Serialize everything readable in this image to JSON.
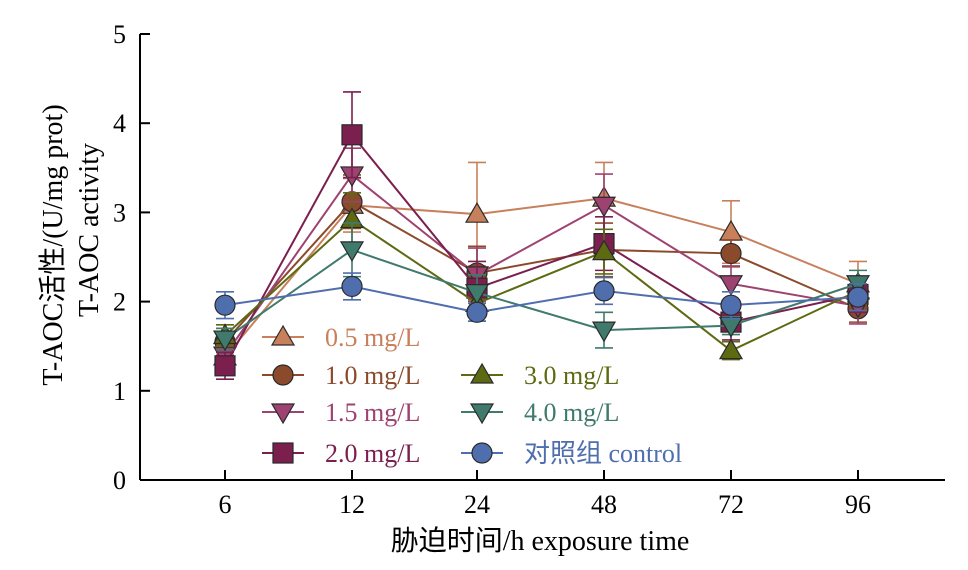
{
  "chart_data": {
    "type": "line",
    "title": "",
    "xlabel": "胁迫时间/h exposure time",
    "ylabel": "T-AOC活性/(U/mg prot)",
    "ylabel2": "T-AOC activity",
    "categories": [
      "6",
      "12",
      "24",
      "48",
      "72",
      "96"
    ],
    "yticks": [
      "0",
      "1",
      "2",
      "3",
      "4",
      "5"
    ],
    "ylim": [
      0,
      5
    ],
    "grid": false,
    "legend_position": "bottom-left",
    "series": [
      {
        "name": "0.5 mg/L",
        "color": "#C8805C",
        "marker": "triangle-up",
        "values": [
          1.38,
          3.08,
          2.98,
          3.16,
          2.78,
          2.2
        ],
        "errors": [
          0.18,
          0.3,
          0.58,
          0.4,
          0.35,
          0.25
        ]
      },
      {
        "name": "1.0 mg/L",
        "color": "#8B4A2B",
        "marker": "circle",
        "values": [
          1.55,
          3.12,
          2.32,
          2.58,
          2.54,
          1.92
        ],
        "errors": [
          0.15,
          0.3,
          0.3,
          0.3,
          0.15,
          0.15
        ]
      },
      {
        "name": "1.5 mg/L",
        "color": "#9E4272",
        "marker": "triangle-down",
        "values": [
          1.4,
          3.42,
          2.3,
          3.08,
          2.2,
          1.95
        ],
        "errors": [
          0.15,
          0.3,
          0.3,
          0.35,
          0.2,
          0.2
        ]
      },
      {
        "name": "2.0 mg/L",
        "color": "#7A1F4E",
        "marker": "square",
        "values": [
          1.28,
          3.87,
          2.15,
          2.65,
          1.77,
          2.08
        ],
        "errors": [
          0.15,
          0.48,
          0.3,
          0.3,
          0.2,
          0.2
        ]
      },
      {
        "name": "3.0 mg/L",
        "color": "#5E6A12",
        "marker": "triangle-up",
        "values": [
          1.62,
          2.92,
          1.98,
          2.56,
          1.45,
          2.12
        ],
        "errors": [
          0.12,
          0.3,
          0.2,
          0.25,
          0.1,
          0.15
        ]
      },
      {
        "name": "4.0 mg/L",
        "color": "#3F7A6C",
        "marker": "triangle-down",
        "values": [
          1.58,
          2.58,
          2.1,
          1.68,
          1.73,
          2.2
        ],
        "errors": [
          0.12,
          0.3,
          0.2,
          0.2,
          0.1,
          0.15
        ]
      },
      {
        "name": "对照组 control",
        "color": "#4F6EAE",
        "marker": "circle",
        "values": [
          1.96,
          2.17,
          1.88,
          2.12,
          1.96,
          2.05
        ],
        "errors": [
          0.15,
          0.15,
          0.1,
          0.15,
          0.15,
          0.15
        ]
      }
    ]
  }
}
